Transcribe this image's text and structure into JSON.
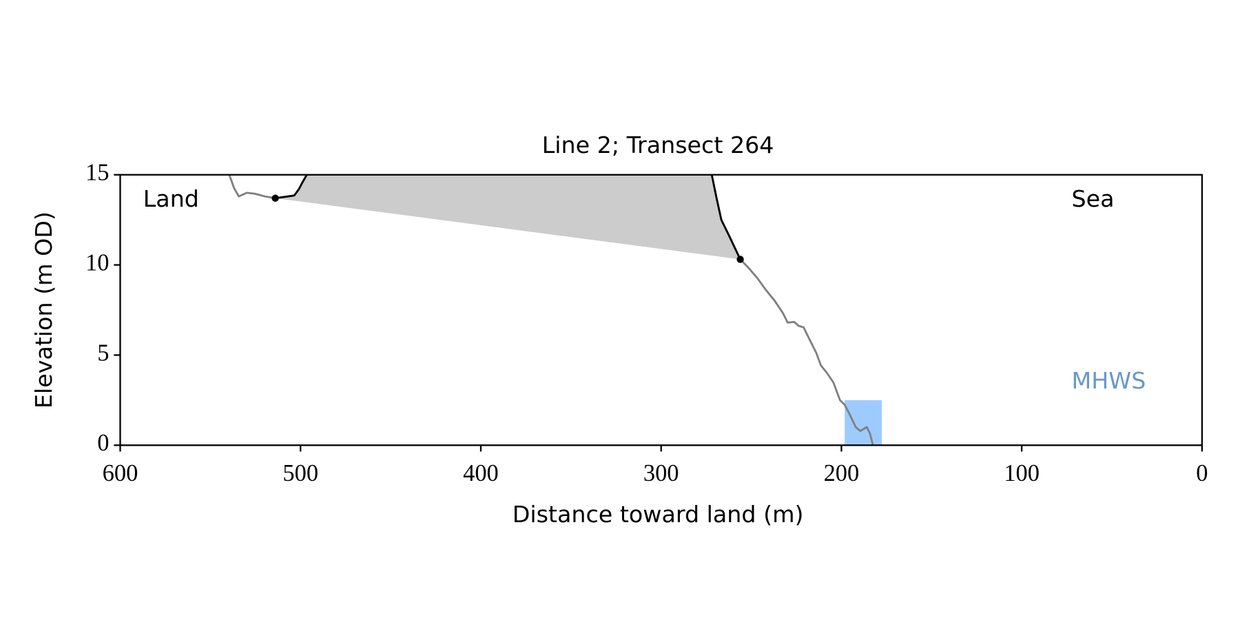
{
  "chart_data": {
    "type": "line",
    "title": "Line 2; Transect 264",
    "x_label": "Distance toward land (m)",
    "y_label": "Elevation (m OD)",
    "xlim": [
      600,
      0
    ],
    "ylim": [
      0,
      15
    ],
    "xticks": [
      600,
      500,
      400,
      300,
      200,
      100,
      0
    ],
    "yticks": [
      0,
      5,
      10,
      15
    ],
    "fill_color": "#cccccc",
    "series": [
      {
        "color": "#808080",
        "x": [
          539.5,
          536.8,
          534.2,
          529.8,
          525.4,
          519.7,
          514,
          null,
          256.1,
          251.8,
          246.5,
          242.1,
          236.8,
          232.4,
          229.8,
          226.3,
          223.7,
          221.0,
          217.5,
          214.0,
          211.4,
          207.9,
          204.4,
          200.8,
          198.2,
          195.6,
          192.1,
          189.5,
          186,
          184.2,
          182.5
        ],
        "values": [
          15,
          14.25,
          13.8,
          14.0,
          13.95,
          13.8,
          13.7,
          null,
          10.31,
          9.87,
          9.25,
          8.64,
          7.98,
          7.32,
          6.8,
          6.84,
          6.62,
          6.54,
          5.83,
          5.13,
          4.43,
          3.99,
          3.47,
          2.5,
          2.24,
          1.75,
          1.01,
          0.79,
          1.01,
          0.66,
          0
        ]
      },
      {
        "color": "#000000",
        "x": [
          514,
          503.5,
          500.9,
          499.1,
          496.5
        ],
        "values": [
          13.7,
          13.85,
          14.2,
          14.55,
          15
        ]
      },
      {
        "color": "#000000",
        "x": [
          271.9,
          269.3,
          266.6,
          262.3,
          256.1
        ],
        "values": [
          15,
          13.73,
          12.5,
          11.62,
          10.31
        ]
      }
    ],
    "points": {
      "color": "#000000",
      "x": [
        514,
        256.1
      ],
      "values": [
        13.7,
        10.31
      ]
    },
    "mhws": {
      "label": "MHWS",
      "x": [
        198.2,
        177.6
      ],
      "y": [
        0,
        2.5
      ],
      "color": "#9ecbff",
      "label_color": "#6699cc"
    },
    "annotations": [
      "Land",
      "Sea"
    ]
  }
}
